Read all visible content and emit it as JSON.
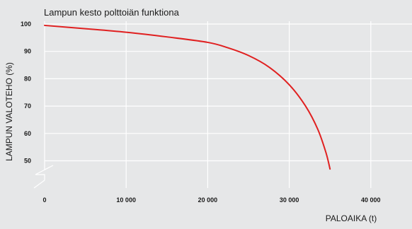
{
  "chart_data": {
    "type": "line",
    "title": "Lampun kesto polttoiän funktiona",
    "xlabel": "PALOAIKA (t)",
    "ylabel": "LAMPUN VALOTEHO  (%)",
    "xlim": [
      0,
      45000
    ],
    "ylim": [
      45,
      100
    ],
    "x_ticks": [
      0,
      10000,
      20000,
      30000,
      40000
    ],
    "x_tick_labels": [
      "0",
      "10 000",
      "20 000",
      "30 000",
      "40 000"
    ],
    "y_ticks": [
      50,
      60,
      70,
      80,
      90,
      100
    ],
    "y_tick_labels": [
      "50",
      "60",
      "70",
      "80",
      "90",
      "100"
    ],
    "grid": true,
    "y_axis_break": true,
    "series": [
      {
        "color": "#e02020",
        "x": [
          0,
          5000,
          10000,
          15000,
          20000,
          22500,
          25000,
          27500,
          30000,
          32000,
          33500,
          34500,
          35000
        ],
        "y": [
          99.5,
          98.3,
          97.0,
          95.3,
          93.3,
          91.3,
          88.5,
          84.3,
          77.8,
          70.0,
          61.5,
          53.0,
          47.0
        ]
      }
    ]
  }
}
